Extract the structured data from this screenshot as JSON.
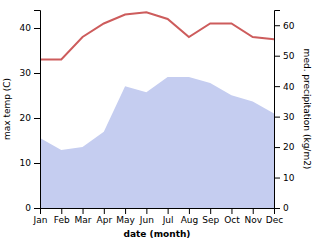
{
  "chart_data": {
    "type": "line",
    "xlabel": "date (month)",
    "ylabel": "max temp (C)",
    "y2label": "med. precipitation (kg/m2)",
    "categories": [
      "Jan",
      "Feb",
      "Mar",
      "Apr",
      "May",
      "Jun",
      "Jul",
      "Aug",
      "Sep",
      "Oct",
      "Nov",
      "Dec"
    ],
    "series": [
      {
        "type": "area",
        "axis": "y2",
        "color": "#c5cdf0",
        "values": [
          23,
          19,
          20,
          25,
          40,
          38,
          43,
          43,
          41,
          37,
          35,
          31
        ]
      },
      {
        "type": "line",
        "color": "#cd5c5c",
        "values": [
          33,
          33,
          38,
          41,
          43,
          43.5,
          42,
          38,
          41,
          41,
          38,
          37.5
        ]
      }
    ],
    "ylim": [
      0,
      44
    ],
    "yticks": [
      0,
      10,
      20,
      30,
      40
    ],
    "y2lim": [
      0,
      65
    ],
    "y2ticks": [
      0,
      10,
      20,
      30,
      40,
      50,
      60
    ],
    "grid": false
  }
}
